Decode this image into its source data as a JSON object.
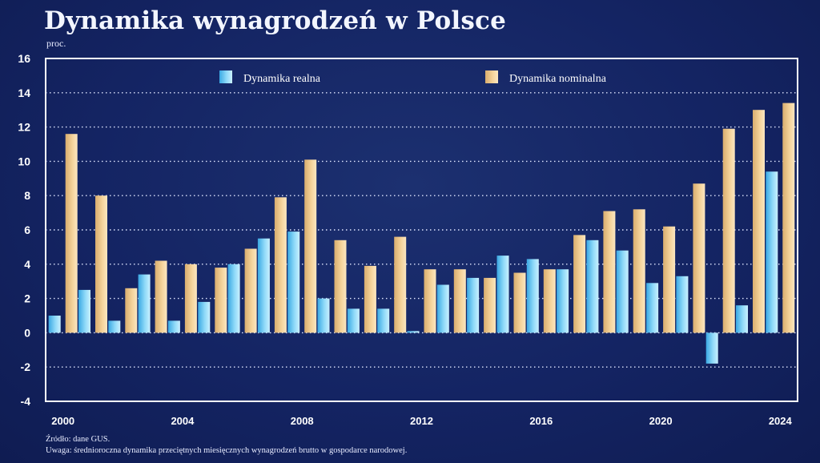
{
  "chart_data": {
    "type": "bar",
    "title": "Dynamika wynagrodzeń w Polsce",
    "ylabel": "proc.",
    "ylim": [
      -4,
      16
    ],
    "yticks": [
      -4,
      -2,
      0,
      2,
      4,
      6,
      8,
      10,
      12,
      14,
      16
    ],
    "categories": [
      "2000",
      "2001",
      "2002",
      "2003",
      "2004",
      "2005",
      "2006",
      "2007",
      "2008",
      "2009",
      "2010",
      "2011",
      "2012",
      "2013",
      "2014",
      "2015",
      "2016",
      "2017",
      "2018",
      "2019",
      "2020",
      "2021",
      "2022",
      "2023",
      "2024"
    ],
    "xtick_labels": [
      "2000",
      "2004",
      "2008",
      "2012",
      "2016",
      "2020",
      "2024"
    ],
    "grid": "horizontal-dotted",
    "legend_position": "top",
    "series": [
      {
        "name": "Dynamika realna",
        "color": "#5cc3ee",
        "values": [
          1.0,
          2.5,
          0.7,
          3.4,
          0.7,
          1.8,
          4.0,
          5.5,
          5.9,
          2.0,
          1.4,
          1.4,
          0.1,
          2.8,
          3.2,
          4.5,
          4.3,
          3.7,
          5.4,
          4.8,
          2.9,
          3.3,
          -1.8,
          1.6,
          9.4
        ]
      },
      {
        "name": "Dynamika nominalna",
        "color": "#f2cf92",
        "values": [
          11.6,
          8.0,
          2.6,
          4.2,
          4.0,
          3.8,
          4.9,
          7.9,
          10.1,
          5.4,
          3.9,
          5.6,
          3.7,
          3.7,
          3.2,
          3.5,
          3.7,
          5.7,
          7.1,
          7.2,
          6.2,
          8.7,
          11.9,
          13.0,
          13.4
        ]
      }
    ]
  },
  "notes": {
    "source": "Źródło: dane GUS.",
    "remark": "Uwaga: średnioroczna dynamika przeciętnych miesięcznych wynagrodzeń brutto w gospodarce narodowej."
  }
}
